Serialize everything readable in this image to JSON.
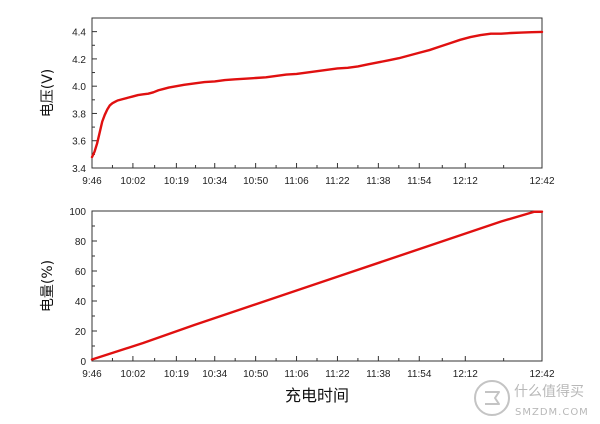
{
  "chart_data": [
    {
      "type": "line",
      "title": "",
      "ylabel": "电压(V)",
      "xlabel": "",
      "ylim": [
        3.4,
        4.5
      ],
      "yticks": [
        3.4,
        3.6,
        3.8,
        4.0,
        4.2,
        4.4
      ],
      "ytick_labels": [
        "3.4",
        "3.6",
        "3.8",
        "4.0",
        "4.2",
        "4.4"
      ],
      "xlim": [
        0,
        176
      ],
      "xticks": [
        0,
        16,
        33,
        48,
        64,
        80,
        96,
        112,
        128,
        146,
        176
      ],
      "xtick_labels": [
        "9:46",
        "10:02",
        "10:19",
        "10:34",
        "10:50",
        "11:06",
        "11:22",
        "11:38",
        "11:54",
        "12:12",
        "12:42"
      ],
      "series": [
        {
          "color": "#e01010",
          "x": [
            0,
            1,
            2,
            3,
            4,
            5,
            6,
            7,
            8,
            9,
            10,
            12,
            14,
            16,
            18,
            20,
            22,
            24,
            26,
            28,
            30,
            33,
            36,
            40,
            44,
            48,
            52,
            56,
            60,
            64,
            68,
            72,
            76,
            80,
            84,
            88,
            92,
            96,
            100,
            104,
            108,
            112,
            116,
            120,
            124,
            128,
            132,
            136,
            140,
            144,
            148,
            152,
            156,
            160,
            164,
            168,
            172,
            176
          ],
          "values": [
            3.48,
            3.52,
            3.58,
            3.66,
            3.74,
            3.79,
            3.83,
            3.86,
            3.875,
            3.885,
            3.895,
            3.905,
            3.915,
            3.925,
            3.935,
            3.94,
            3.945,
            3.955,
            3.97,
            3.98,
            3.99,
            4.0,
            4.01,
            4.02,
            4.03,
            4.035,
            4.045,
            4.05,
            4.055,
            4.06,
            4.065,
            4.075,
            4.085,
            4.09,
            4.1,
            4.11,
            4.12,
            4.13,
            4.135,
            4.145,
            4.16,
            4.175,
            4.19,
            4.205,
            4.225,
            4.245,
            4.265,
            4.29,
            4.315,
            4.34,
            4.36,
            4.375,
            4.385,
            4.385,
            4.39,
            4.393,
            4.396,
            4.398
          ]
        }
      ]
    },
    {
      "type": "line",
      "title": "",
      "ylabel": "电量(%)",
      "xlabel": "充电时间",
      "ylim": [
        0,
        100
      ],
      "yticks": [
        0,
        20,
        40,
        60,
        80,
        100
      ],
      "ytick_labels": [
        "0",
        "20",
        "40",
        "60",
        "80",
        "100"
      ],
      "xlim": [
        0,
        176
      ],
      "xticks": [
        0,
        16,
        33,
        48,
        64,
        80,
        96,
        112,
        128,
        146,
        176
      ],
      "xtick_labels": [
        "9:46",
        "10:02",
        "10:19",
        "10:34",
        "10:50",
        "11:06",
        "11:22",
        "11:38",
        "11:54",
        "12:12",
        "12:42"
      ],
      "series": [
        {
          "color": "#e01010",
          "x": [
            0,
            20,
            40,
            60,
            80,
            100,
            120,
            140,
            160,
            173,
            176
          ],
          "values": [
            1,
            12,
            24,
            35.5,
            47,
            58.5,
            70,
            81.5,
            93,
            99.5,
            99.5
          ]
        }
      ]
    }
  ],
  "watermark": {
    "text": "什么值得买",
    "subtext": "SMZDM.COM",
    "color": "#b8b8b8"
  }
}
